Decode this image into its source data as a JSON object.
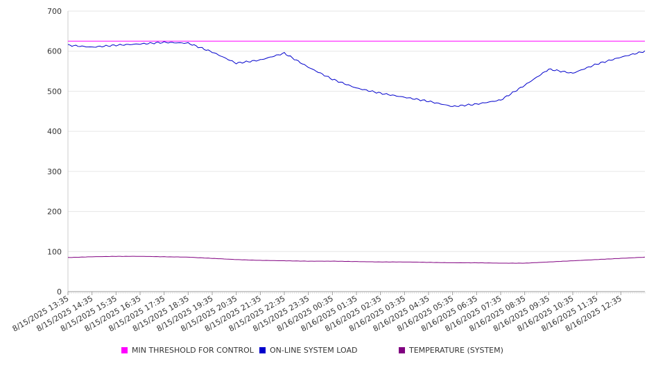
{
  "chart_data": {
    "type": "line",
    "ylim": [
      0,
      700
    ],
    "yticks": [
      0,
      100,
      200,
      300,
      400,
      500,
      600,
      700
    ],
    "xticks": [
      "8/15/2025 13:35",
      "8/15/2025 14:35",
      "8/15/2025 15:35",
      "8/15/2025 16:35",
      "8/15/2025 17:35",
      "8/15/2025 18:35",
      "8/15/2025 19:35",
      "8/15/2025 20:35",
      "8/15/2025 21:35",
      "8/15/2025 22:35",
      "8/15/2025 23:35",
      "8/16/2025 00:35",
      "8/16/2025 01:35",
      "8/16/2025 02:35",
      "8/16/2025 03:35",
      "8/16/2025 04:35",
      "8/16/2025 05:35",
      "8/16/2025 06:35",
      "8/16/2025 07:35",
      "8/16/2025 08:35",
      "8/16/2025 09:35",
      "8/16/2025 10:35",
      "8/16/2025 11:35",
      "8/16/2025 12:35"
    ],
    "x": [
      "8/15/2025 13:35",
      "8/15/2025 14:35",
      "8/15/2025 15:35",
      "8/15/2025 16:35",
      "8/15/2025 17:35",
      "8/15/2025 18:35",
      "8/15/2025 19:35",
      "8/15/2025 20:35",
      "8/15/2025 21:35",
      "8/15/2025 22:35",
      "8/15/2025 23:35",
      "8/16/2025 00:35",
      "8/16/2025 01:35",
      "8/16/2025 02:35",
      "8/16/2025 03:35",
      "8/16/2025 04:35",
      "8/16/2025 05:35",
      "8/16/2025 06:35",
      "8/16/2025 07:35",
      "8/16/2025 08:35",
      "8/16/2025 09:35",
      "8/16/2025 10:35",
      "8/16/2025 11:35",
      "8/16/2025 12:35",
      "8/16/2025 13:35"
    ],
    "grid": true,
    "legend_position": "bottom",
    "series": [
      {
        "name": "MIN THRESHOLD FOR CONTROL",
        "color": "#ff00ff",
        "values": [
          625,
          625,
          625,
          625,
          625,
          625,
          625,
          625,
          625,
          625,
          625,
          625,
          625,
          625,
          625,
          625,
          625,
          625,
          625,
          625,
          625,
          625,
          625,
          625,
          625
        ]
      },
      {
        "name": "ON-LINE SYSTEM LOAD",
        "color": "#0000cc",
        "values": [
          615,
          610,
          615,
          618,
          622,
          620,
          598,
          570,
          578,
          595,
          560,
          530,
          508,
          495,
          485,
          475,
          462,
          468,
          478,
          515,
          555,
          545,
          568,
          585,
          600
        ]
      },
      {
        "name": "TEMPERATURE (SYSTEM)",
        "color": "#800080",
        "values": [
          85,
          87,
          88,
          88,
          87,
          86,
          83,
          80,
          78,
          77,
          76,
          76,
          75,
          74,
          74,
          73,
          72,
          72,
          71,
          71,
          74,
          77,
          80,
          83,
          86
        ]
      }
    ]
  }
}
